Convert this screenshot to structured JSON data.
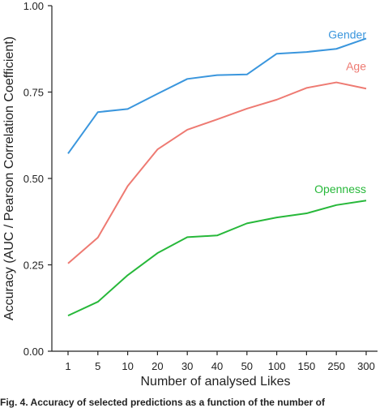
{
  "chart_data": {
    "type": "line",
    "categories": [
      "1",
      "5",
      "10",
      "20",
      "30",
      "40",
      "50",
      "100",
      "150",
      "250",
      "300"
    ],
    "series": [
      {
        "name": "Gender",
        "color": "#3a96dd",
        "values": [
          0.572,
          0.692,
          0.701,
          0.745,
          0.788,
          0.799,
          0.801,
          0.861,
          0.866,
          0.875,
          0.905
        ]
      },
      {
        "name": "Age",
        "color": "#ee7a72",
        "values": [
          0.254,
          0.329,
          0.478,
          0.584,
          0.641,
          0.671,
          0.702,
          0.728,
          0.762,
          0.778,
          0.76
        ]
      },
      {
        "name": "Openness",
        "color": "#27b83a",
        "values": [
          0.103,
          0.143,
          0.22,
          0.284,
          0.33,
          0.335,
          0.37,
          0.387,
          0.399,
          0.423,
          0.436
        ]
      }
    ],
    "yticks": [
      "0.00",
      "0.25",
      "0.50",
      "0.75",
      "1.00"
    ],
    "ylim": [
      0,
      1
    ],
    "xlabel": "Number of analysed Likes",
    "ylabel": "Accuracy (AUC / Pearson Correlation Coefficient)",
    "title": "",
    "grid": false,
    "legend": "inline labels"
  },
  "caption": "Fig. 4.  Accuracy of selected predictions as a function of the number of"
}
